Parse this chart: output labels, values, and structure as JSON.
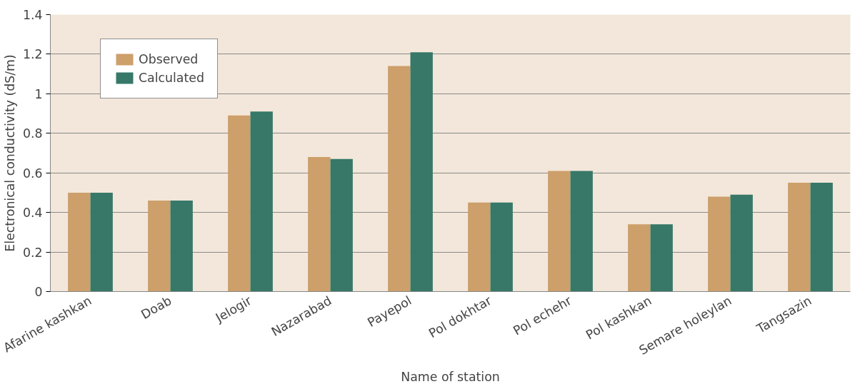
{
  "chart_data": {
    "type": "bar",
    "xlabel": "Name of station",
    "ylabel": "Electronical conductivity (dS/m)",
    "categories": [
      "Afarine kashkan",
      "Doab",
      "Jelogir",
      "Nazarabad",
      "Payepol",
      "Pol dokhtar",
      "Pol echehr",
      "Pol kashkan",
      "Semare holeylan",
      "Tangsazin"
    ],
    "series": [
      {
        "name": "Observed",
        "color": "#cd9f6a",
        "values": [
          0.5,
          0.46,
          0.89,
          0.68,
          1.14,
          0.45,
          0.61,
          0.34,
          0.48,
          0.55
        ]
      },
      {
        "name": "Calculated",
        "color": "#377868",
        "values": [
          0.5,
          0.46,
          0.91,
          0.67,
          1.21,
          0.45,
          0.61,
          0.34,
          0.49,
          0.55
        ]
      }
    ],
    "ylim": [
      0,
      1.4
    ],
    "yticks": [
      0,
      {
        "value": 0.2,
        "label": "0.2"
      },
      {
        "value": 0.4,
        "label": "0.4"
      },
      {
        "value": 0.6,
        "label": "0.6"
      },
      {
        "value": 0.8,
        "label": "0.8"
      },
      1,
      {
        "value": 1.2,
        "label": "1.2"
      },
      {
        "value": 1.4,
        "label": "1.4"
      }
    ],
    "grid": "y",
    "legend": "top left"
  }
}
